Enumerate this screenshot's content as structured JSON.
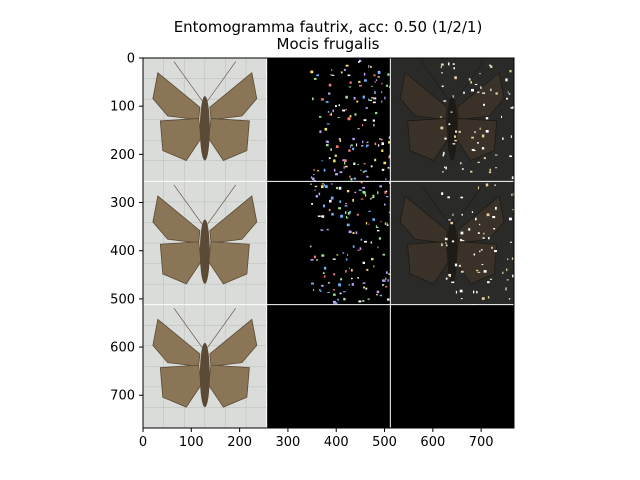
{
  "title_line1": "Entomogramma fautrix, acc: 0.50 (1/2/1)",
  "title_line2": "Mocis frugalis",
  "chart_data": {
    "type": "image-grid",
    "title": "Entomogramma fautrix, acc: 0.50 (1/2/1)",
    "subtitle": "Mocis frugalis",
    "xlabel": "",
    "ylabel": "",
    "xlim": [
      0,
      768
    ],
    "ylim": [
      768,
      0
    ],
    "xticks": [
      0,
      100,
      200,
      300,
      400,
      500,
      600,
      700
    ],
    "yticks": [
      0,
      100,
      200,
      300,
      400,
      500,
      600,
      700
    ],
    "grid": false,
    "grid_layout": {
      "rows": 3,
      "cols": 3,
      "tile_size": 256
    },
    "panels": [
      {
        "row": 0,
        "col": 0,
        "kind": "photo"
      },
      {
        "row": 0,
        "col": 1,
        "kind": "saliency"
      },
      {
        "row": 0,
        "col": 2,
        "kind": "overlay"
      },
      {
        "row": 1,
        "col": 0,
        "kind": "photo"
      },
      {
        "row": 1,
        "col": 1,
        "kind": "saliency"
      },
      {
        "row": 1,
        "col": 2,
        "kind": "overlay"
      },
      {
        "row": 2,
        "col": 0,
        "kind": "photo"
      },
      {
        "row": 2,
        "col": 1,
        "kind": "blank"
      },
      {
        "row": 2,
        "col": 2,
        "kind": "blank"
      }
    ]
  },
  "colors": {
    "background": "#ffffff",
    "axis": "#000000",
    "photo_bg": "#d9dcd8",
    "moth": "#8a7557",
    "moth_dark": "#5a4a36",
    "blank": "#000000",
    "overlay_bg": "#2a2a28",
    "separator": "#ffffff"
  }
}
